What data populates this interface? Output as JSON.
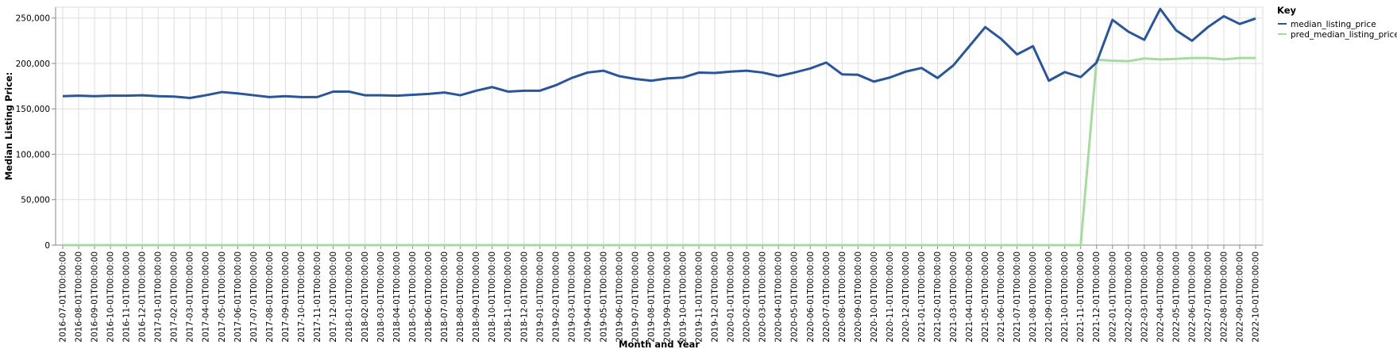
{
  "chart_data": {
    "type": "line",
    "xlabel": "Month and Year",
    "ylabel": "Median Listing Price:",
    "ylim": [
      0,
      262000
    ],
    "yticks": [
      0,
      50000,
      100000,
      150000,
      200000,
      250000
    ],
    "ytick_labels": [
      "0",
      "50,000",
      "100,000",
      "150,000",
      "200,000",
      "250,000"
    ],
    "grid": true,
    "legend_title": "Key",
    "legend_position": "top-right",
    "x": [
      "2016-07-01T00:00:00",
      "2016-08-01T00:00:00",
      "2016-09-01T00:00:00",
      "2016-10-01T00:00:00",
      "2016-11-01T00:00:00",
      "2016-12-01T00:00:00",
      "2017-01-01T00:00:00",
      "2017-02-01T00:00:00",
      "2017-03-01T00:00:00",
      "2017-04-01T00:00:00",
      "2017-05-01T00:00:00",
      "2017-06-01T00:00:00",
      "2017-07-01T00:00:00",
      "2017-08-01T00:00:00",
      "2017-09-01T00:00:00",
      "2017-10-01T00:00:00",
      "2017-11-01T00:00:00",
      "2017-12-01T00:00:00",
      "2018-01-01T00:00:00",
      "2018-02-01T00:00:00",
      "2018-03-01T00:00:00",
      "2018-04-01T00:00:00",
      "2018-05-01T00:00:00",
      "2018-06-01T00:00:00",
      "2018-07-01T00:00:00",
      "2018-08-01T00:00:00",
      "2018-09-01T00:00:00",
      "2018-10-01T00:00:00",
      "2018-11-01T00:00:00",
      "2018-12-01T00:00:00",
      "2019-01-01T00:00:00",
      "2019-02-01T00:00:00",
      "2019-03-01T00:00:00",
      "2019-04-01T00:00:00",
      "2019-05-01T00:00:00",
      "2019-06-01T00:00:00",
      "2019-07-01T00:00:00",
      "2019-08-01T00:00:00",
      "2019-09-01T00:00:00",
      "2019-10-01T00:00:00",
      "2019-11-01T00:00:00",
      "2019-12-01T00:00:00",
      "2020-01-01T00:00:00",
      "2020-02-01T00:00:00",
      "2020-03-01T00:00:00",
      "2020-04-01T00:00:00",
      "2020-05-01T00:00:00",
      "2020-06-01T00:00:00",
      "2020-07-01T00:00:00",
      "2020-08-01T00:00:00",
      "2020-09-01T00:00:00",
      "2020-10-01T00:00:00",
      "2020-11-01T00:00:00",
      "2020-12-01T00:00:00",
      "2021-01-01T00:00:00",
      "2021-02-01T00:00:00",
      "2021-03-01T00:00:00",
      "2021-04-01T00:00:00",
      "2021-05-01T00:00:00",
      "2021-06-01T00:00:00",
      "2021-07-01T00:00:00",
      "2021-08-01T00:00:00",
      "2021-09-01T00:00:00",
      "2021-10-01T00:00:00",
      "2021-11-01T00:00:00",
      "2021-12-01T00:00:00",
      "2022-01-01T00:00:00",
      "2022-02-01T00:00:00",
      "2022-03-01T00:00:00",
      "2022-04-01T00:00:00",
      "2022-05-01T00:00:00",
      "2022-06-01T00:00:00",
      "2022-07-01T00:00:00",
      "2022-08-01T00:00:00",
      "2022-09-01T00:00:00",
      "2022-10-01T00:00:00"
    ],
    "series": [
      {
        "name": "median_listing_price",
        "color": "#2a5599",
        "values": [
          164000,
          164500,
          164000,
          164500,
          164500,
          165000,
          164000,
          163500,
          162000,
          165000,
          168500,
          167000,
          165000,
          163000,
          164000,
          163000,
          163000,
          169000,
          169000,
          165000,
          165000,
          164500,
          165500,
          166500,
          168000,
          165000,
          170000,
          174000,
          169000,
          170000,
          170000,
          176000,
          184000,
          190000,
          192000,
          186000,
          183000,
          181000,
          183500,
          184500,
          190000,
          189500,
          191000,
          192000,
          190000,
          186000,
          190000,
          194500,
          201000,
          188000,
          187500,
          180000,
          184500,
          191000,
          195000,
          184000,
          198000,
          219000,
          240000,
          227000,
          210000,
          219000,
          181000,
          190500,
          185000,
          201000,
          248000,
          235000,
          226000,
          260000,
          236500,
          225000,
          240000,
          252000,
          243500,
          249500
        ]
      },
      {
        "name": "pred_median_listing_price",
        "color": "#a6dba0",
        "values": [
          0,
          0,
          0,
          0,
          0,
          0,
          0,
          0,
          0,
          0,
          0,
          0,
          0,
          0,
          0,
          0,
          0,
          0,
          0,
          0,
          0,
          0,
          0,
          0,
          0,
          0,
          0,
          0,
          0,
          0,
          0,
          0,
          0,
          0,
          0,
          0,
          0,
          0,
          0,
          0,
          0,
          0,
          0,
          0,
          0,
          0,
          0,
          0,
          0,
          0,
          0,
          0,
          0,
          0,
          0,
          0,
          0,
          0,
          0,
          0,
          0,
          0,
          0,
          0,
          0,
          204000,
          203000,
          202500,
          205500,
          204500,
          205000,
          206000,
          206000,
          204500,
          206000,
          206000
        ]
      }
    ]
  }
}
